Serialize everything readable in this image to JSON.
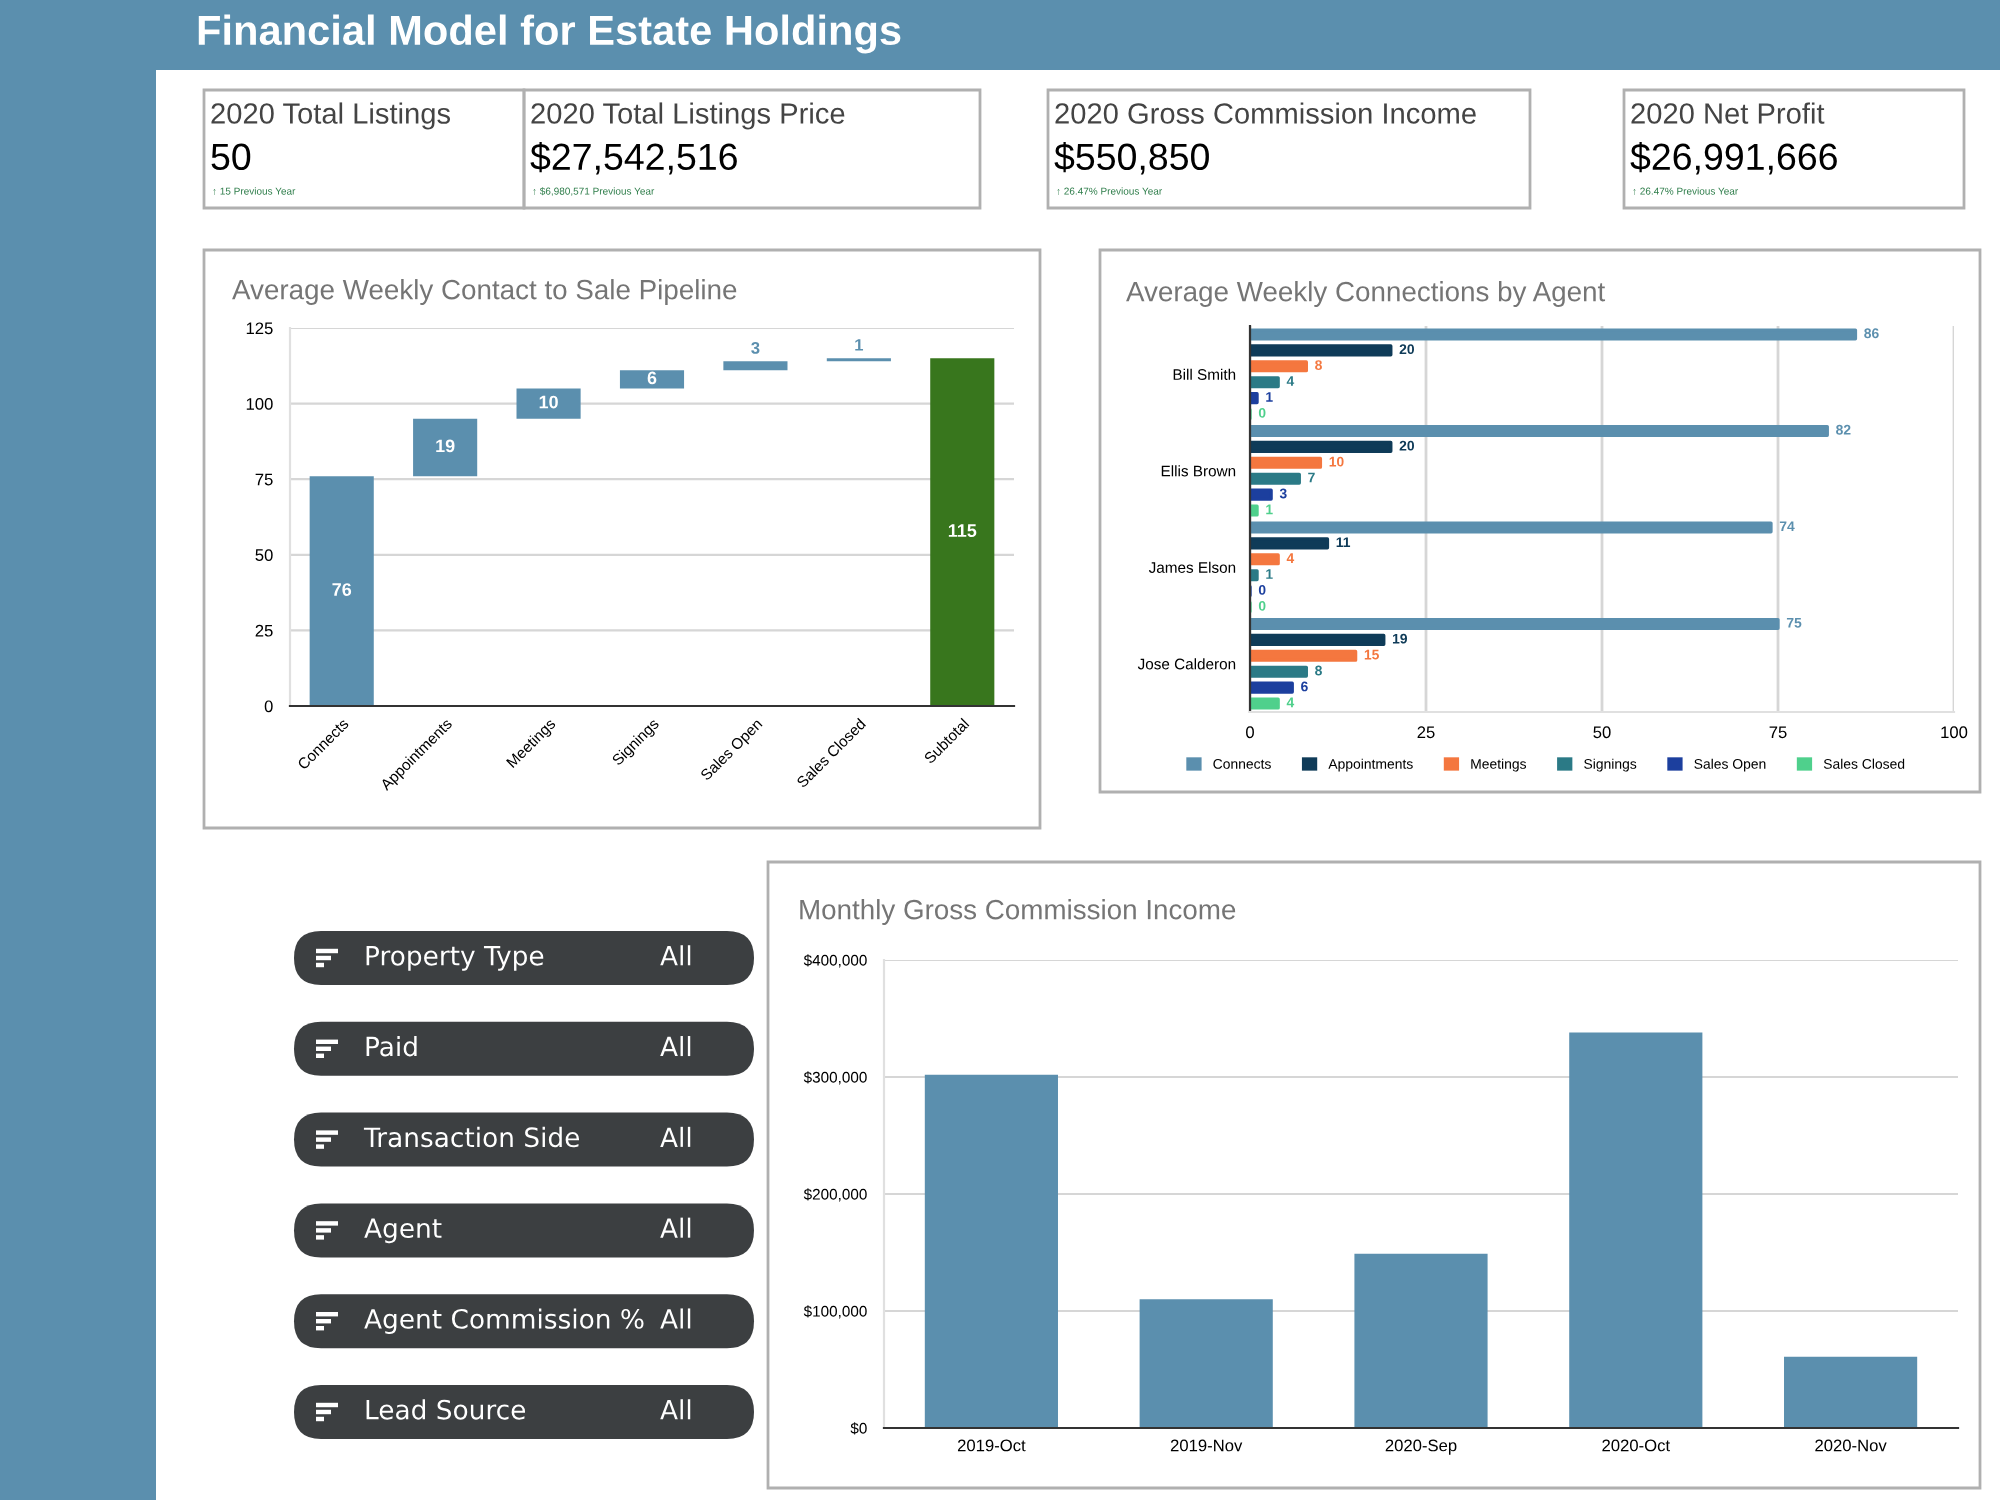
{
  "chart_data": [
    {
      "type": "other",
      "title": "Financial Model for Estate Holdings"
    },
    {
      "type": "other",
      "title": "2020 Total Listings",
      "annotations": [
        "50",
        "↑ 15 Previous Year"
      ]
    },
    {
      "type": "other",
      "title": "2020 Total Listings Price",
      "annotations": [
        "$27,542,516",
        "↑ $6,980,571 Previous Year"
      ]
    },
    {
      "type": "other",
      "title": "2020 Gross Commission Income",
      "annotations": [
        "$550,850",
        "↑ 26.47% Previous Year"
      ]
    },
    {
      "type": "other",
      "title": "2020 Net Profit",
      "annotations": [
        "$26,991,666",
        "↑ 26.47% Previous Year"
      ]
    },
    {
      "type": "bar",
      "title": "Average Weekly Contact to Sale Pipeline",
      "categories": [
        "Connects",
        "Appointments",
        "Meetings",
        "Signings",
        "Sales Open",
        "Sales Closed",
        "Subtotal"
      ],
      "values": [
        76,
        19,
        10,
        6,
        3,
        1,
        115
      ],
      "base": [
        0,
        76,
        95,
        105,
        111,
        114,
        0
      ],
      "colors": [
        "#5b8fae",
        "#5b8fae",
        "#5b8fae",
        "#5b8fae",
        "#5b8fae",
        "#5b8fae",
        "#38761d"
      ],
      "ylim": [
        0,
        125
      ],
      "yticks": [
        0,
        25,
        50,
        75,
        100,
        125
      ],
      "grid": "y",
      "data_labels": true
    },
    {
      "type": "bar",
      "orientation": "horizontal",
      "title": "Average Weekly Connections by Agent",
      "categories": [
        "Bill Smith",
        "Ellis Brown",
        "James Elson",
        "Jose Calderon"
      ],
      "series": [
        {
          "name": "Connects",
          "color": "#5b8fae",
          "values": [
            86,
            82,
            74,
            75
          ]
        },
        {
          "name": "Appointments",
          "color": "#0f3b58",
          "values": [
            20,
            20,
            11,
            19
          ]
        },
        {
          "name": "Meetings",
          "color": "#f4773f",
          "values": [
            8,
            10,
            4,
            15
          ]
        },
        {
          "name": "Signings",
          "color": "#2b7a86",
          "values": [
            4,
            7,
            1,
            8
          ]
        },
        {
          "name": "Sales Open",
          "color": "#1c3f9e",
          "values": [
            1,
            3,
            0,
            6
          ]
        },
        {
          "name": "Sales Closed",
          "color": "#4fd08c",
          "values": [
            0,
            1,
            0,
            4
          ]
        }
      ],
      "xlim": [
        0,
        100
      ],
      "xticks": [
        0,
        25,
        50,
        75,
        100
      ],
      "grid": "x",
      "legend": "bottom",
      "data_labels": true
    },
    {
      "type": "other",
      "annotations": [
        "Property Type",
        "All",
        "Paid",
        "All",
        "Transaction Side",
        "All",
        "Agent",
        "All",
        "Agent Commission %",
        "All",
        "Lead Source",
        "All"
      ]
    },
    {
      "type": "bar",
      "title": "Monthly Gross Commission Income",
      "categories": [
        "2019-Oct",
        "2019-Nov",
        "2020-Sep",
        "2020-Oct",
        "2020-Nov"
      ],
      "values": [
        302000,
        110000,
        149000,
        338000,
        61000
      ],
      "color": "#5b8fae",
      "ylim": [
        0,
        400000
      ],
      "yticks": [
        {
          "value": 0,
          "label": "$0"
        },
        {
          "value": 100000,
          "label": "$100,000"
        },
        {
          "value": 200000,
          "label": "$200,000"
        },
        {
          "value": 300000,
          "label": "$300,000"
        },
        {
          "value": 400000,
          "label": "$400,000"
        }
      ],
      "grid": "y"
    }
  ]
}
